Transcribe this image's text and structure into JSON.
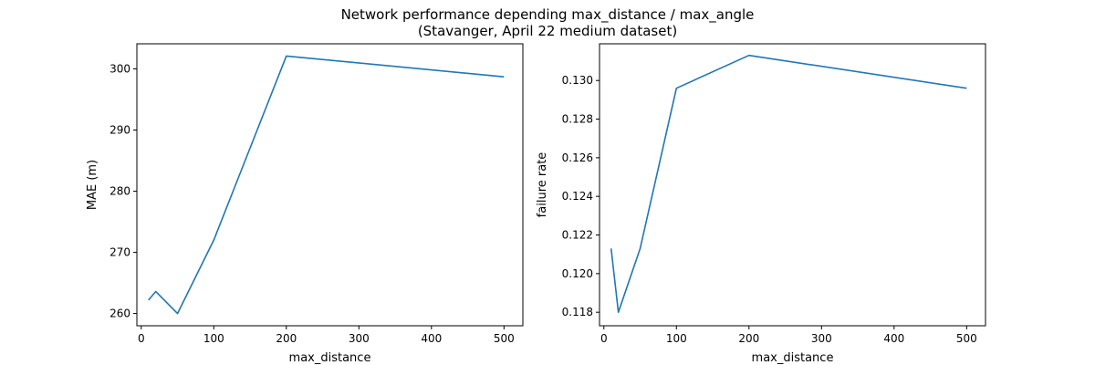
{
  "figure": {
    "title_line1": "Network performance depending max_distance / max_angle",
    "title_line2": "(Stavanger, April 22 medium dataset)"
  },
  "colors": {
    "line": "#1f77b4",
    "axes": "#000000"
  },
  "chart_data": [
    {
      "type": "line",
      "xlabel": "max_distance",
      "ylabel": "MAE (m)",
      "xlim": [
        -6,
        526
      ],
      "ylim": [
        258.0,
        304.1
      ],
      "xticks": [
        0,
        100,
        200,
        300,
        400,
        500
      ],
      "xtick_labels": [
        "0",
        "100",
        "200",
        "300",
        "400",
        "500"
      ],
      "yticks": [
        260,
        270,
        280,
        290,
        300
      ],
      "ytick_labels": [
        "260",
        "270",
        "280",
        "290",
        "300"
      ],
      "grid": false,
      "x": [
        10,
        20,
        50,
        100,
        200,
        500
      ],
      "y": [
        262.2,
        263.6,
        260.0,
        272.0,
        302.1,
        298.7
      ]
    },
    {
      "type": "line",
      "xlabel": "max_distance",
      "ylabel": "failure rate",
      "xlim": [
        -6,
        526
      ],
      "ylim": [
        0.1173,
        0.1319
      ],
      "xticks": [
        0,
        100,
        200,
        300,
        400,
        500
      ],
      "xtick_labels": [
        "0",
        "100",
        "200",
        "300",
        "400",
        "500"
      ],
      "yticks": [
        0.118,
        0.12,
        0.122,
        0.124,
        0.126,
        0.128,
        0.13
      ],
      "ytick_labels": [
        "0.118",
        "0.120",
        "0.122",
        "0.124",
        "0.126",
        "0.128",
        "0.130"
      ],
      "grid": false,
      "x": [
        10,
        20,
        50,
        100,
        200,
        500
      ],
      "y": [
        0.1213,
        0.118,
        0.1213,
        0.1296,
        0.1313,
        0.1296
      ]
    }
  ]
}
